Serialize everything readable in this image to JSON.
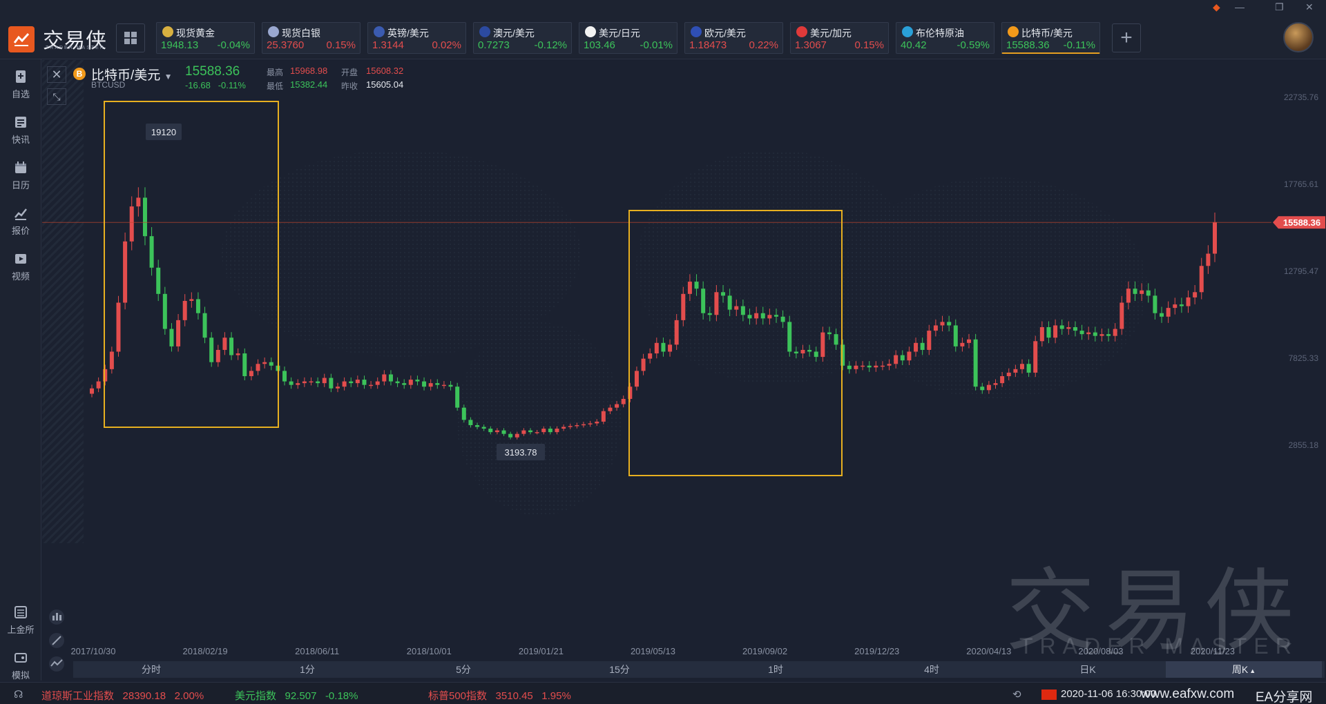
{
  "app": {
    "logo_text": "交易侠",
    "logo_sub": "TRADER MASTER"
  },
  "tickers": [
    {
      "name": "现货黄金",
      "price": "1948.13",
      "change": "-0.04%",
      "dir": "dn",
      "icon": "gold-icon",
      "color": "#d8b040"
    },
    {
      "name": "现货白银",
      "price": "25.3760",
      "change": "0.15%",
      "dir": "up",
      "icon": "silver-icon",
      "color": "#9aa8d0"
    },
    {
      "name": "英镑/美元",
      "price": "1.3144",
      "change": "0.02%",
      "dir": "up",
      "icon": "uk-flag-icon",
      "color": "#3b5bb0"
    },
    {
      "name": "澳元/美元",
      "price": "0.7273",
      "change": "-0.12%",
      "dir": "dn",
      "icon": "au-flag-icon",
      "color": "#2c4aa0"
    },
    {
      "name": "美元/日元",
      "price": "103.46",
      "change": "-0.01%",
      "dir": "dn",
      "icon": "jp-flag-icon",
      "color": "#f2f2f2"
    },
    {
      "name": "欧元/美元",
      "price": "1.18473",
      "change": "0.22%",
      "dir": "up",
      "icon": "eu-flag-icon",
      "color": "#2f4fb5"
    },
    {
      "name": "美元/加元",
      "price": "1.3067",
      "change": "0.15%",
      "dir": "up",
      "icon": "ca-flag-icon",
      "color": "#e03a3a"
    },
    {
      "name": "布伦特原油",
      "price": "40.42",
      "change": "-0.59%",
      "dir": "dn",
      "icon": "oil-icon",
      "color": "#2aa0d8"
    },
    {
      "name": "比特币/美元",
      "price": "15588.36",
      "change": "-0.11%",
      "dir": "dn",
      "icon": "bitcoin-icon",
      "color": "#f29a1b"
    }
  ],
  "sidebar": {
    "items": [
      {
        "label": "自选",
        "icon": "watchlist-icon"
      },
      {
        "label": "快讯",
        "icon": "news-icon"
      },
      {
        "label": "日历",
        "icon": "calendar-icon"
      },
      {
        "label": "报价",
        "icon": "quote-icon"
      },
      {
        "label": "视频",
        "icon": "video-icon"
      }
    ],
    "bottom": [
      {
        "label": "上金所",
        "icon": "exchange-icon"
      },
      {
        "label": "模拟",
        "icon": "simulate-icon"
      }
    ]
  },
  "symbol": {
    "coin_glyph": "B",
    "name": "比特币/美元",
    "code": "BTCUSD",
    "price": "15588.36",
    "change": "-16.68",
    "change_pct": "-0.11%",
    "high_label": "最高",
    "high": "15968.98",
    "open_label": "开盘",
    "open": "15608.32",
    "low_label": "最低",
    "low": "15382.44",
    "prev_label": "昨收",
    "prev": "15605.04"
  },
  "chart_data": {
    "type": "candlestick",
    "y_ticks": [
      "22735.76",
      "17765.61",
      "12795.47",
      "7825.33",
      "2855.18"
    ],
    "y_tick_values": [
      22735.76,
      17765.61,
      12795.47,
      7825.33,
      2855.18
    ],
    "x_ticks": [
      "2017/10/30",
      "2018/02/19",
      "2018/06/11",
      "2018/10/01",
      "2019/01/21",
      "2019/05/13",
      "2019/09/02",
      "2019/12/23",
      "2020/04/13",
      "2020/08/03",
      "2020/11/23"
    ],
    "current_price_label": "15588.36",
    "current_price": 15588.36,
    "annotations": [
      {
        "text": "19120",
        "value": 19120
      },
      {
        "text": "3193.78",
        "value": 3193.78
      }
    ],
    "up_color": "#e34d4d",
    "down_color": "#3cc35a",
    "highlight_color": "#e8b020",
    "weekly_closes": [
      6100,
      6500,
      7200,
      8200,
      11000,
      14500,
      16500,
      17000,
      14800,
      13000,
      11500,
      9500,
      8500,
      10000,
      11100,
      11200,
      10400,
      9000,
      7600,
      8300,
      9000,
      8000,
      8100,
      6800,
      7100,
      7500,
      7600,
      7400,
      7100,
      6500,
      6300,
      6400,
      6500,
      6500,
      6400,
      6700,
      6100,
      6200,
      6500,
      6400,
      6600,
      6300,
      6300,
      6500,
      6900,
      6500,
      6400,
      6300,
      6600,
      6500,
      6200,
      6400,
      6300,
      6300,
      6200,
      5000,
      4300,
      4000,
      3900,
      3800,
      3600,
      3700,
      3500,
      3300,
      3500,
      3700,
      3600,
      3600,
      3800,
      3600,
      3800,
      3900,
      3950,
      4000,
      4050,
      4100,
      4200,
      4800,
      5000,
      5200,
      5500,
      6200,
      7100,
      7800,
      8100,
      8700,
      8200,
      8600,
      10000,
      11500,
      12200,
      11800,
      10400,
      10300,
      11600,
      11400,
      10600,
      10800,
      10300,
      10100,
      10400,
      10100,
      10300,
      10200,
      9900,
      8200,
      8100,
      8300,
      8200,
      7900,
      9300,
      9200,
      8600,
      7400,
      7200,
      7400,
      7400,
      7300,
      7400,
      7400,
      7500,
      8000,
      7700,
      8200,
      8700,
      8300,
      9400,
      9700,
      9900,
      9700,
      8500,
      8700,
      8900,
      6200,
      6000,
      6300,
      6400,
      6800,
      7000,
      7200,
      7500,
      7000,
      8800,
      9600,
      9000,
      9700,
      9500,
      9600,
      9400,
      9200,
      9300,
      9100,
      9200,
      9100,
      9500,
      11000,
      11800,
      11500,
      11700,
      11400,
      10400,
      10200,
      10700,
      10900,
      10800,
      11300,
      11600,
      13100,
      13800,
      15600
    ]
  },
  "timeframes": [
    "分时",
    "1分",
    "5分",
    "15分",
    "1时",
    "4时",
    "日K",
    "周K"
  ],
  "active_timeframe": "周K",
  "active_timeframe_arrow": "▲",
  "footer": {
    "items": [
      {
        "name": "道琼斯工业指数",
        "value": "28390.18",
        "change": "2.00%"
      },
      {
        "name": "美元指数",
        "value": "92.507",
        "change": "-0.18%"
      },
      {
        "name": "标普500指数",
        "value": "3510.45",
        "change": "1.95%"
      }
    ],
    "datetime": "2020-11-06 16:30:00",
    "site": "www.eafxw.com",
    "site2": "EA分享网"
  },
  "watermark": {
    "main": "交易侠",
    "sub": "TRADER MASTER"
  }
}
